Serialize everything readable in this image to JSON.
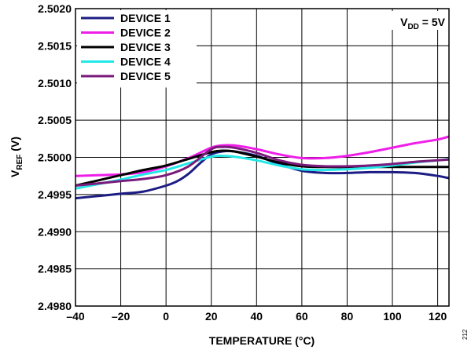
{
  "chart_data": {
    "type": "line",
    "xlabel": "TEMPERATURE (°C)",
    "ylabel_main": "V",
    "ylabel_sub": "REF",
    "ylabel_unit": " (V)",
    "xlim": [
      -40,
      125
    ],
    "ylim": [
      2.498,
      2.502
    ],
    "x_ticks": [
      -40,
      -20,
      0,
      20,
      40,
      60,
      80,
      100,
      120
    ],
    "x_tick_labels": [
      "–40",
      "–20",
      "0",
      "20",
      "40",
      "60",
      "80",
      "100",
      "120"
    ],
    "y_ticks": [
      2.498,
      2.4985,
      2.499,
      2.4995,
      2.5,
      2.5005,
      2.501,
      2.5015,
      2.502
    ],
    "y_tick_labels": [
      "2.4980",
      "2.4985",
      "2.4990",
      "2.4995",
      "2.5000",
      "2.5005",
      "2.5010",
      "2.5015",
      "2.5020"
    ],
    "grid": true,
    "legend_position": "top-left",
    "annotation": {
      "main": "V",
      "sub": "DD",
      "rest": " = 5V"
    },
    "side_note": "212",
    "series": [
      {
        "name": "DEVICE 1",
        "color": "#1c1c84",
        "x": [
          -40,
          -30,
          -20,
          -10,
          0,
          5,
          10,
          15,
          20,
          25,
          30,
          40,
          50,
          60,
          70,
          80,
          90,
          100,
          110,
          120,
          125
        ],
        "y": [
          2.49945,
          2.49948,
          2.49951,
          2.49954,
          2.49962,
          2.49968,
          2.49978,
          2.49992,
          2.50004,
          2.50008,
          2.50008,
          2.50002,
          2.49991,
          2.49982,
          2.49979,
          2.49979,
          2.4998,
          2.4998,
          2.49979,
          2.49975,
          2.49972
        ]
      },
      {
        "name": "DEVICE 2",
        "color": "#ee1ee8",
        "x": [
          -40,
          -30,
          -20,
          -10,
          0,
          10,
          20,
          25,
          30,
          40,
          50,
          60,
          70,
          80,
          90,
          100,
          110,
          120,
          125
        ],
        "y": [
          2.49975,
          2.49976,
          2.49977,
          2.4998,
          2.49988,
          2.49999,
          2.50013,
          2.50016,
          2.50016,
          2.50011,
          2.50004,
          2.49999,
          2.49999,
          2.50002,
          2.50007,
          2.50013,
          2.50019,
          2.50024,
          2.50028
        ]
      },
      {
        "name": "DEVICE 3",
        "color": "#000000",
        "x": [
          -40,
          -30,
          -20,
          -10,
          0,
          10,
          20,
          25,
          30,
          40,
          50,
          60,
          70,
          80,
          90,
          100,
          110,
          120,
          125
        ],
        "y": [
          2.49962,
          2.49969,
          2.49976,
          2.49983,
          2.49989,
          2.49998,
          2.50007,
          2.50009,
          2.50008,
          2.50001,
          2.49993,
          2.49988,
          2.49987,
          2.49987,
          2.49987,
          2.49987,
          2.49987,
          2.49987,
          2.49987
        ]
      },
      {
        "name": "DEVICE 4",
        "color": "#22e8e8",
        "x": [
          -40,
          -30,
          -20,
          -10,
          0,
          10,
          20,
          25,
          30,
          40,
          50,
          60,
          70,
          80,
          90,
          100,
          110,
          120,
          125
        ],
        "y": [
          2.49958,
          2.49964,
          2.4997,
          2.49977,
          2.49983,
          2.49992,
          2.50001,
          2.50002,
          2.50001,
          2.49996,
          2.49989,
          2.49984,
          2.49983,
          2.49984,
          2.49986,
          2.49989,
          2.49993,
          2.49996,
          2.49998
        ]
      },
      {
        "name": "DEVICE 5",
        "color": "#7a1a7a",
        "x": [
          -40,
          -30,
          -20,
          -10,
          0,
          10,
          20,
          25,
          30,
          40,
          50,
          60,
          70,
          80,
          90,
          100,
          110,
          120,
          125
        ],
        "y": [
          2.49962,
          2.49965,
          2.49968,
          2.49971,
          2.49976,
          2.49988,
          2.50011,
          2.50014,
          2.50013,
          2.50006,
          2.49996,
          2.4999,
          2.49988,
          2.49988,
          2.49989,
          2.49991,
          2.49994,
          2.49996,
          2.49997
        ]
      }
    ]
  }
}
